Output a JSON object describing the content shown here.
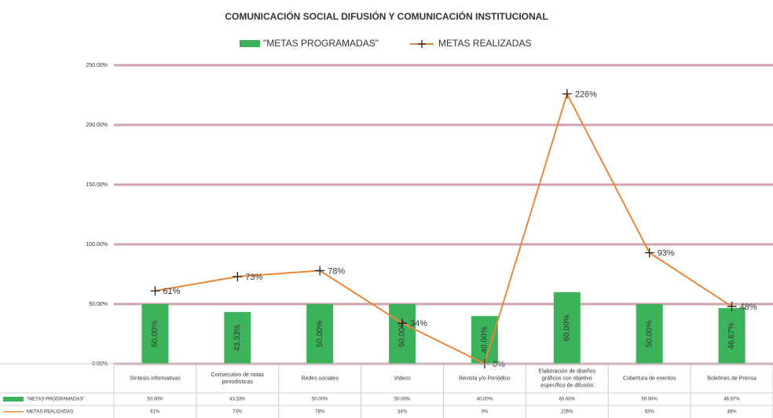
{
  "chart_data": {
    "type": "bar-line",
    "title": "COMUNICACIÓN SOCIAL  DIFUSIÓN Y COMUNICACIÓN INSTITUCIONAL",
    "categories": [
      "Síntesis informativas",
      "Consecutivo de notas periodísticas",
      "Redes sociales",
      "Videos",
      "Revista y/o Periódico",
      "Elaboración de diseños gráficos con objetivo específico de difusión",
      "Cobertura de eventos",
      "Boletines de Prensa"
    ],
    "series": [
      {
        "name": "\"METAS PROGRAMADAS\"",
        "type": "bar",
        "color": "#3cb35a",
        "values": [
          50,
          43.33,
          50,
          50,
          40,
          60,
          50,
          46.67
        ],
        "value_labels": [
          "50.00%",
          "43.33%",
          "50.00%",
          "50.00%",
          "40.00%",
          "60.00%",
          "50.00%",
          "46.67%"
        ]
      },
      {
        "name": "METAS REALIZADAS",
        "type": "line",
        "color": "#e8873a",
        "values": [
          61,
          73,
          78,
          34,
          0,
          226,
          93,
          48
        ],
        "value_labels": [
          "61%",
          "73%",
          "78%",
          "34%",
          "0%",
          "226%",
          "93%",
          "48%"
        ]
      }
    ],
    "ylim": [
      0,
      250
    ],
    "yticks": [
      {
        "value": 0,
        "label": "0.00%"
      },
      {
        "value": 50,
        "label": "50.00%"
      },
      {
        "value": 100,
        "label": "100.00%"
      },
      {
        "value": 150,
        "label": "150.00%"
      },
      {
        "value": 200,
        "label": "200.00%"
      },
      {
        "value": 250,
        "label": "250.00%"
      }
    ],
    "grid": true,
    "data_table": true
  }
}
